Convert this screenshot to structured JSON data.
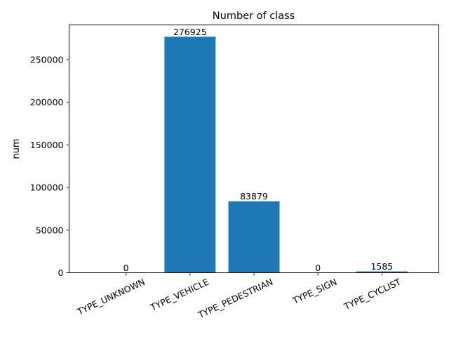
{
  "chart_data": {
    "type": "bar",
    "title": "Number of class",
    "xlabel": "",
    "ylabel": "num",
    "categories": [
      "TYPE_UNKNOWN",
      "TYPE_VEHICLE",
      "TYPE_PEDESTRIAN",
      "TYPE_SIGN",
      "TYPE_CYCLIST"
    ],
    "values": [
      0,
      276925,
      83879,
      0,
      1585
    ],
    "data_labels": [
      "0",
      "276925",
      "83879",
      "0",
      "1585"
    ],
    "ylim": [
      0,
      290780
    ],
    "yticks": [
      0,
      50000,
      100000,
      150000,
      200000,
      250000
    ],
    "ytick_labels": [
      "0",
      "50000",
      "100000",
      "150000",
      "200000",
      "250000"
    ],
    "xtick_rotation_deg": -25,
    "grid": false,
    "legend": "none",
    "bar_color": "#1f77b4"
  }
}
